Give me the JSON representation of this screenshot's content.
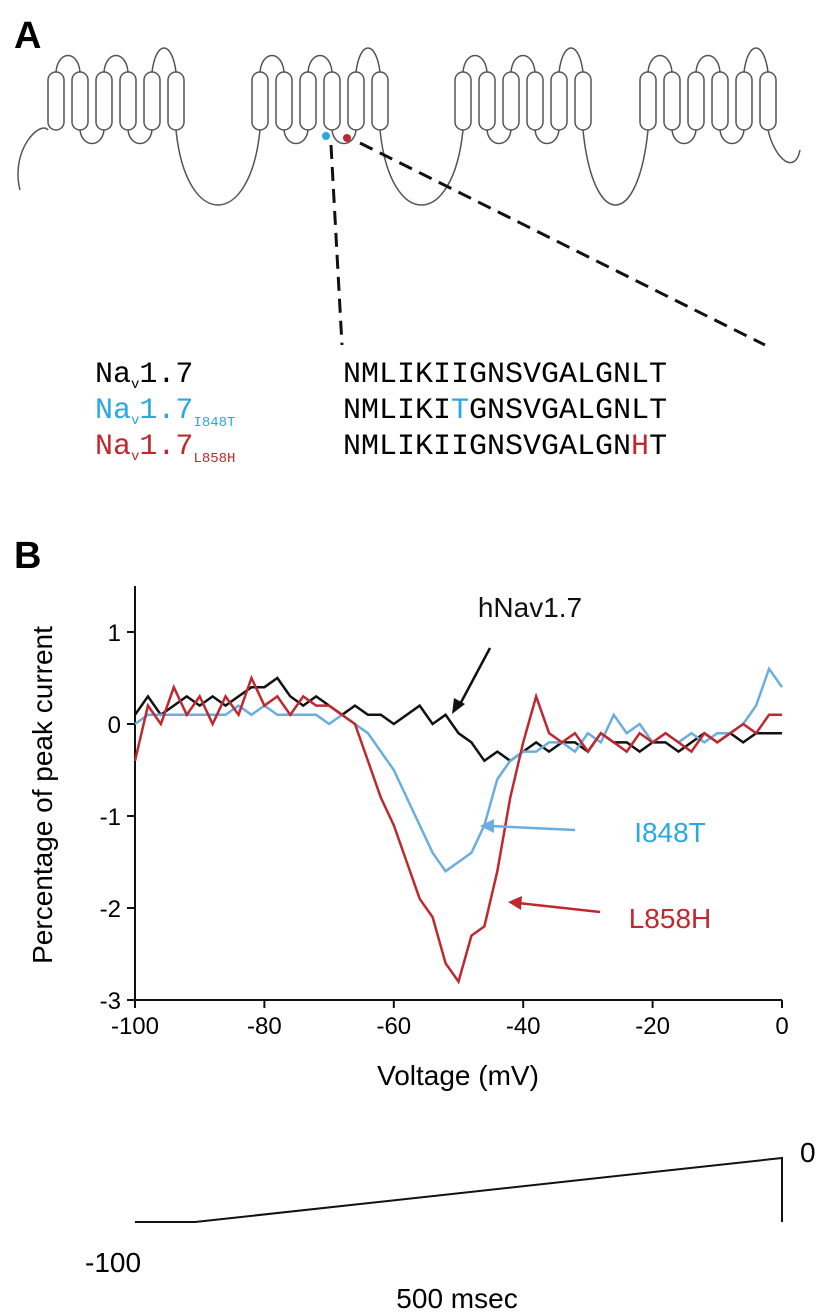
{
  "panel_a": {
    "label": "A",
    "names": [
      {
        "prefix": "Na",
        "sub": "v",
        "main": "1.7"
      },
      {
        "prefix": "Na",
        "sub": "v",
        "main": "1.7",
        "variant": "I848T"
      },
      {
        "prefix": "Na",
        "sub": "v",
        "main": "1.7",
        "variant": "L858H"
      }
    ],
    "sequences": [
      {
        "text": "NMLIKIIGNSVGALGNLT"
      },
      {
        "pre": "NMLIKI",
        "mutation": "T",
        "post": "GNSVGALGNLT"
      },
      {
        "pre": "NMLIKIIGNSVGALGN",
        "mutation": "H",
        "post": "T"
      }
    ]
  },
  "panel_b": {
    "label": "B",
    "protocol": {
      "top": "0",
      "bottom": "-100",
      "duration": "500 msec"
    }
  },
  "chart_data": {
    "type": "line",
    "x_label": "Voltage (mV)",
    "y_label": "Percentage of peak current",
    "x": [
      -100,
      -98,
      -96,
      -94,
      -92,
      -90,
      -88,
      -86,
      -84,
      -82,
      -80,
      -78,
      -76,
      -74,
      -72,
      -70,
      -68,
      -66,
      -64,
      -62,
      -60,
      -58,
      -56,
      -54,
      -52,
      -50,
      -48,
      -46,
      -44,
      -42,
      -40,
      -38,
      -36,
      -34,
      -32,
      -30,
      -28,
      -26,
      -24,
      -22,
      -20,
      -18,
      -16,
      -14,
      -12,
      -10,
      -8,
      -6,
      -4,
      -2,
      0
    ],
    "series": [
      {
        "name": "hNav1.7",
        "color": "#111111",
        "values": [
          0.1,
          0.3,
          0.1,
          0.2,
          0.3,
          0.2,
          0.3,
          0.2,
          0.3,
          0.4,
          0.4,
          0.5,
          0.3,
          0.2,
          0.3,
          0.2,
          0.1,
          0.2,
          0.1,
          0.1,
          0.0,
          0.1,
          0.2,
          0.0,
          0.1,
          -0.1,
          -0.2,
          -0.4,
          -0.3,
          -0.4,
          -0.3,
          -0.2,
          -0.3,
          -0.2,
          -0.2,
          -0.3,
          -0.1,
          -0.2,
          -0.2,
          -0.3,
          -0.2,
          -0.2,
          -0.3,
          -0.2,
          -0.1,
          -0.2,
          -0.1,
          -0.2,
          -0.1,
          -0.1,
          -0.1
        ]
      },
      {
        "name": "I848T",
        "color": "#6aaee0",
        "values": [
          0.0,
          0.1,
          0.1,
          0.1,
          0.1,
          0.1,
          0.1,
          0.1,
          0.2,
          0.1,
          0.2,
          0.1,
          0.1,
          0.1,
          0.1,
          0.0,
          0.1,
          0.0,
          -0.1,
          -0.3,
          -0.5,
          -0.8,
          -1.1,
          -1.4,
          -1.6,
          -1.5,
          -1.4,
          -1.1,
          -0.6,
          -0.4,
          -0.3,
          -0.3,
          -0.2,
          -0.2,
          -0.3,
          -0.1,
          -0.2,
          0.1,
          -0.1,
          0.0,
          -0.2,
          -0.1,
          -0.2,
          -0.1,
          -0.2,
          -0.1,
          -0.1,
          0.0,
          0.2,
          0.6,
          0.4
        ]
      },
      {
        "name": "L858H",
        "color": "#c0282f",
        "values": [
          -0.4,
          0.2,
          0.0,
          0.4,
          0.1,
          0.3,
          0.0,
          0.3,
          0.1,
          0.5,
          0.2,
          0.3,
          0.1,
          0.3,
          0.2,
          0.2,
          0.1,
          0.0,
          -0.4,
          -0.8,
          -1.1,
          -1.5,
          -1.9,
          -2.1,
          -2.6,
          -2.8,
          -2.3,
          -2.2,
          -1.6,
          -0.8,
          -0.2,
          0.3,
          -0.1,
          -0.2,
          -0.1,
          -0.3,
          -0.1,
          -0.2,
          -0.3,
          -0.1,
          -0.2,
          -0.1,
          -0.2,
          -0.3,
          -0.1,
          -0.2,
          -0.1,
          0.0,
          -0.1,
          0.1,
          0.1
        ]
      }
    ],
    "xlim": [
      -100,
      0
    ],
    "xticks": [
      -100,
      -80,
      -60,
      -40,
      -20,
      0
    ],
    "ylim": [
      -3,
      1.5
    ],
    "yticks": [
      -3,
      -2,
      -1,
      0,
      1
    ]
  }
}
